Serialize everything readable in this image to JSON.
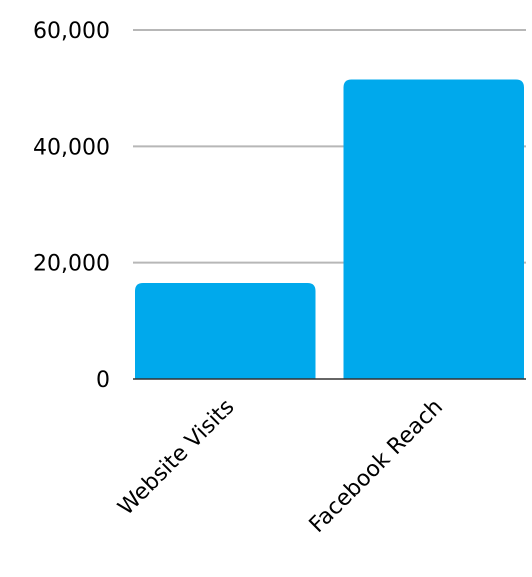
{
  "chart_data": {
    "type": "bar",
    "title": "",
    "xlabel": "",
    "ylabel": "",
    "categories": [
      "Website Visits",
      "Facebook Reach"
    ],
    "values": [
      16500,
      51500
    ],
    "ylim": [
      0,
      60000
    ],
    "yticks": [
      0,
      20000,
      40000,
      60000
    ],
    "ytick_labels": [
      "0",
      "20,000",
      "40,000",
      "60,000"
    ],
    "bar_color": "#00a9ec",
    "grid": true,
    "legend": "none"
  }
}
